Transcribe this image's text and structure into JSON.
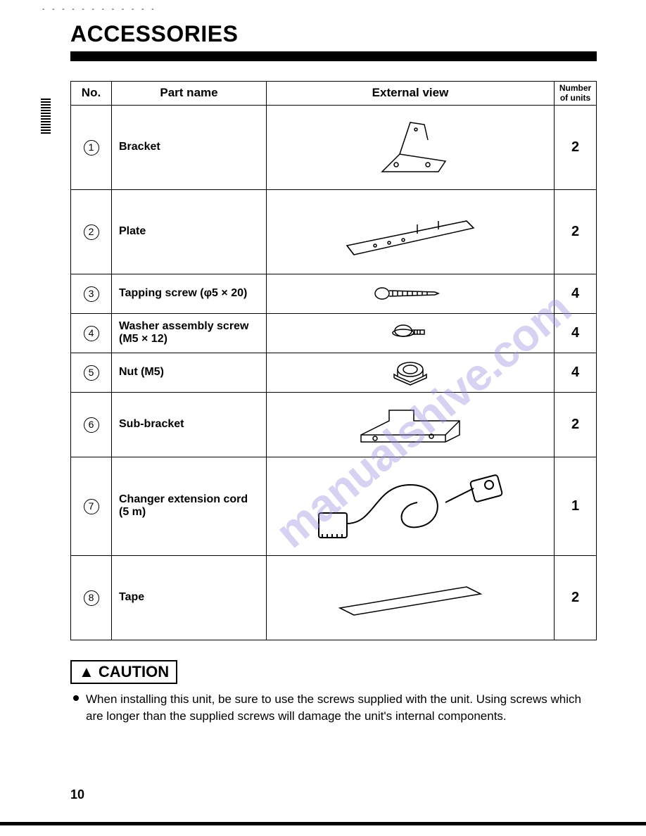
{
  "title": "ACCESSORIES",
  "headers": {
    "no": "No.",
    "part_name": "Part name",
    "external_view": "External view",
    "units": "Number of units"
  },
  "rows": [
    {
      "num": "1",
      "name": "Bracket",
      "units": "2",
      "h": "h-120"
    },
    {
      "num": "2",
      "name": "Plate",
      "units": "2",
      "h": "h-120"
    },
    {
      "num": "3",
      "name": "Tapping screw (φ5 × 20)",
      "units": "4",
      "h": "h-56"
    },
    {
      "num": "4",
      "name": "Washer assembly screw (M5 × 12)",
      "units": "4",
      "h": "h-56"
    },
    {
      "num": "5",
      "name": "Nut (M5)",
      "units": "4",
      "h": "h-56"
    },
    {
      "num": "6",
      "name": "Sub-bracket",
      "units": "2",
      "h": "h-92"
    },
    {
      "num": "7",
      "name": "Changer extension cord (5 m)",
      "units": "1",
      "h": "h-140"
    },
    {
      "num": "8",
      "name": "Tape",
      "units": "2",
      "h": "h-120"
    }
  ],
  "caution_label": "▲ CAUTION",
  "caution_text": "When installing this unit, be sure to use the screws supplied with the unit. Using screws which are longer than the supplied screws will damage the unit's internal components.",
  "page_number": "10",
  "watermark": "manualshive.com"
}
